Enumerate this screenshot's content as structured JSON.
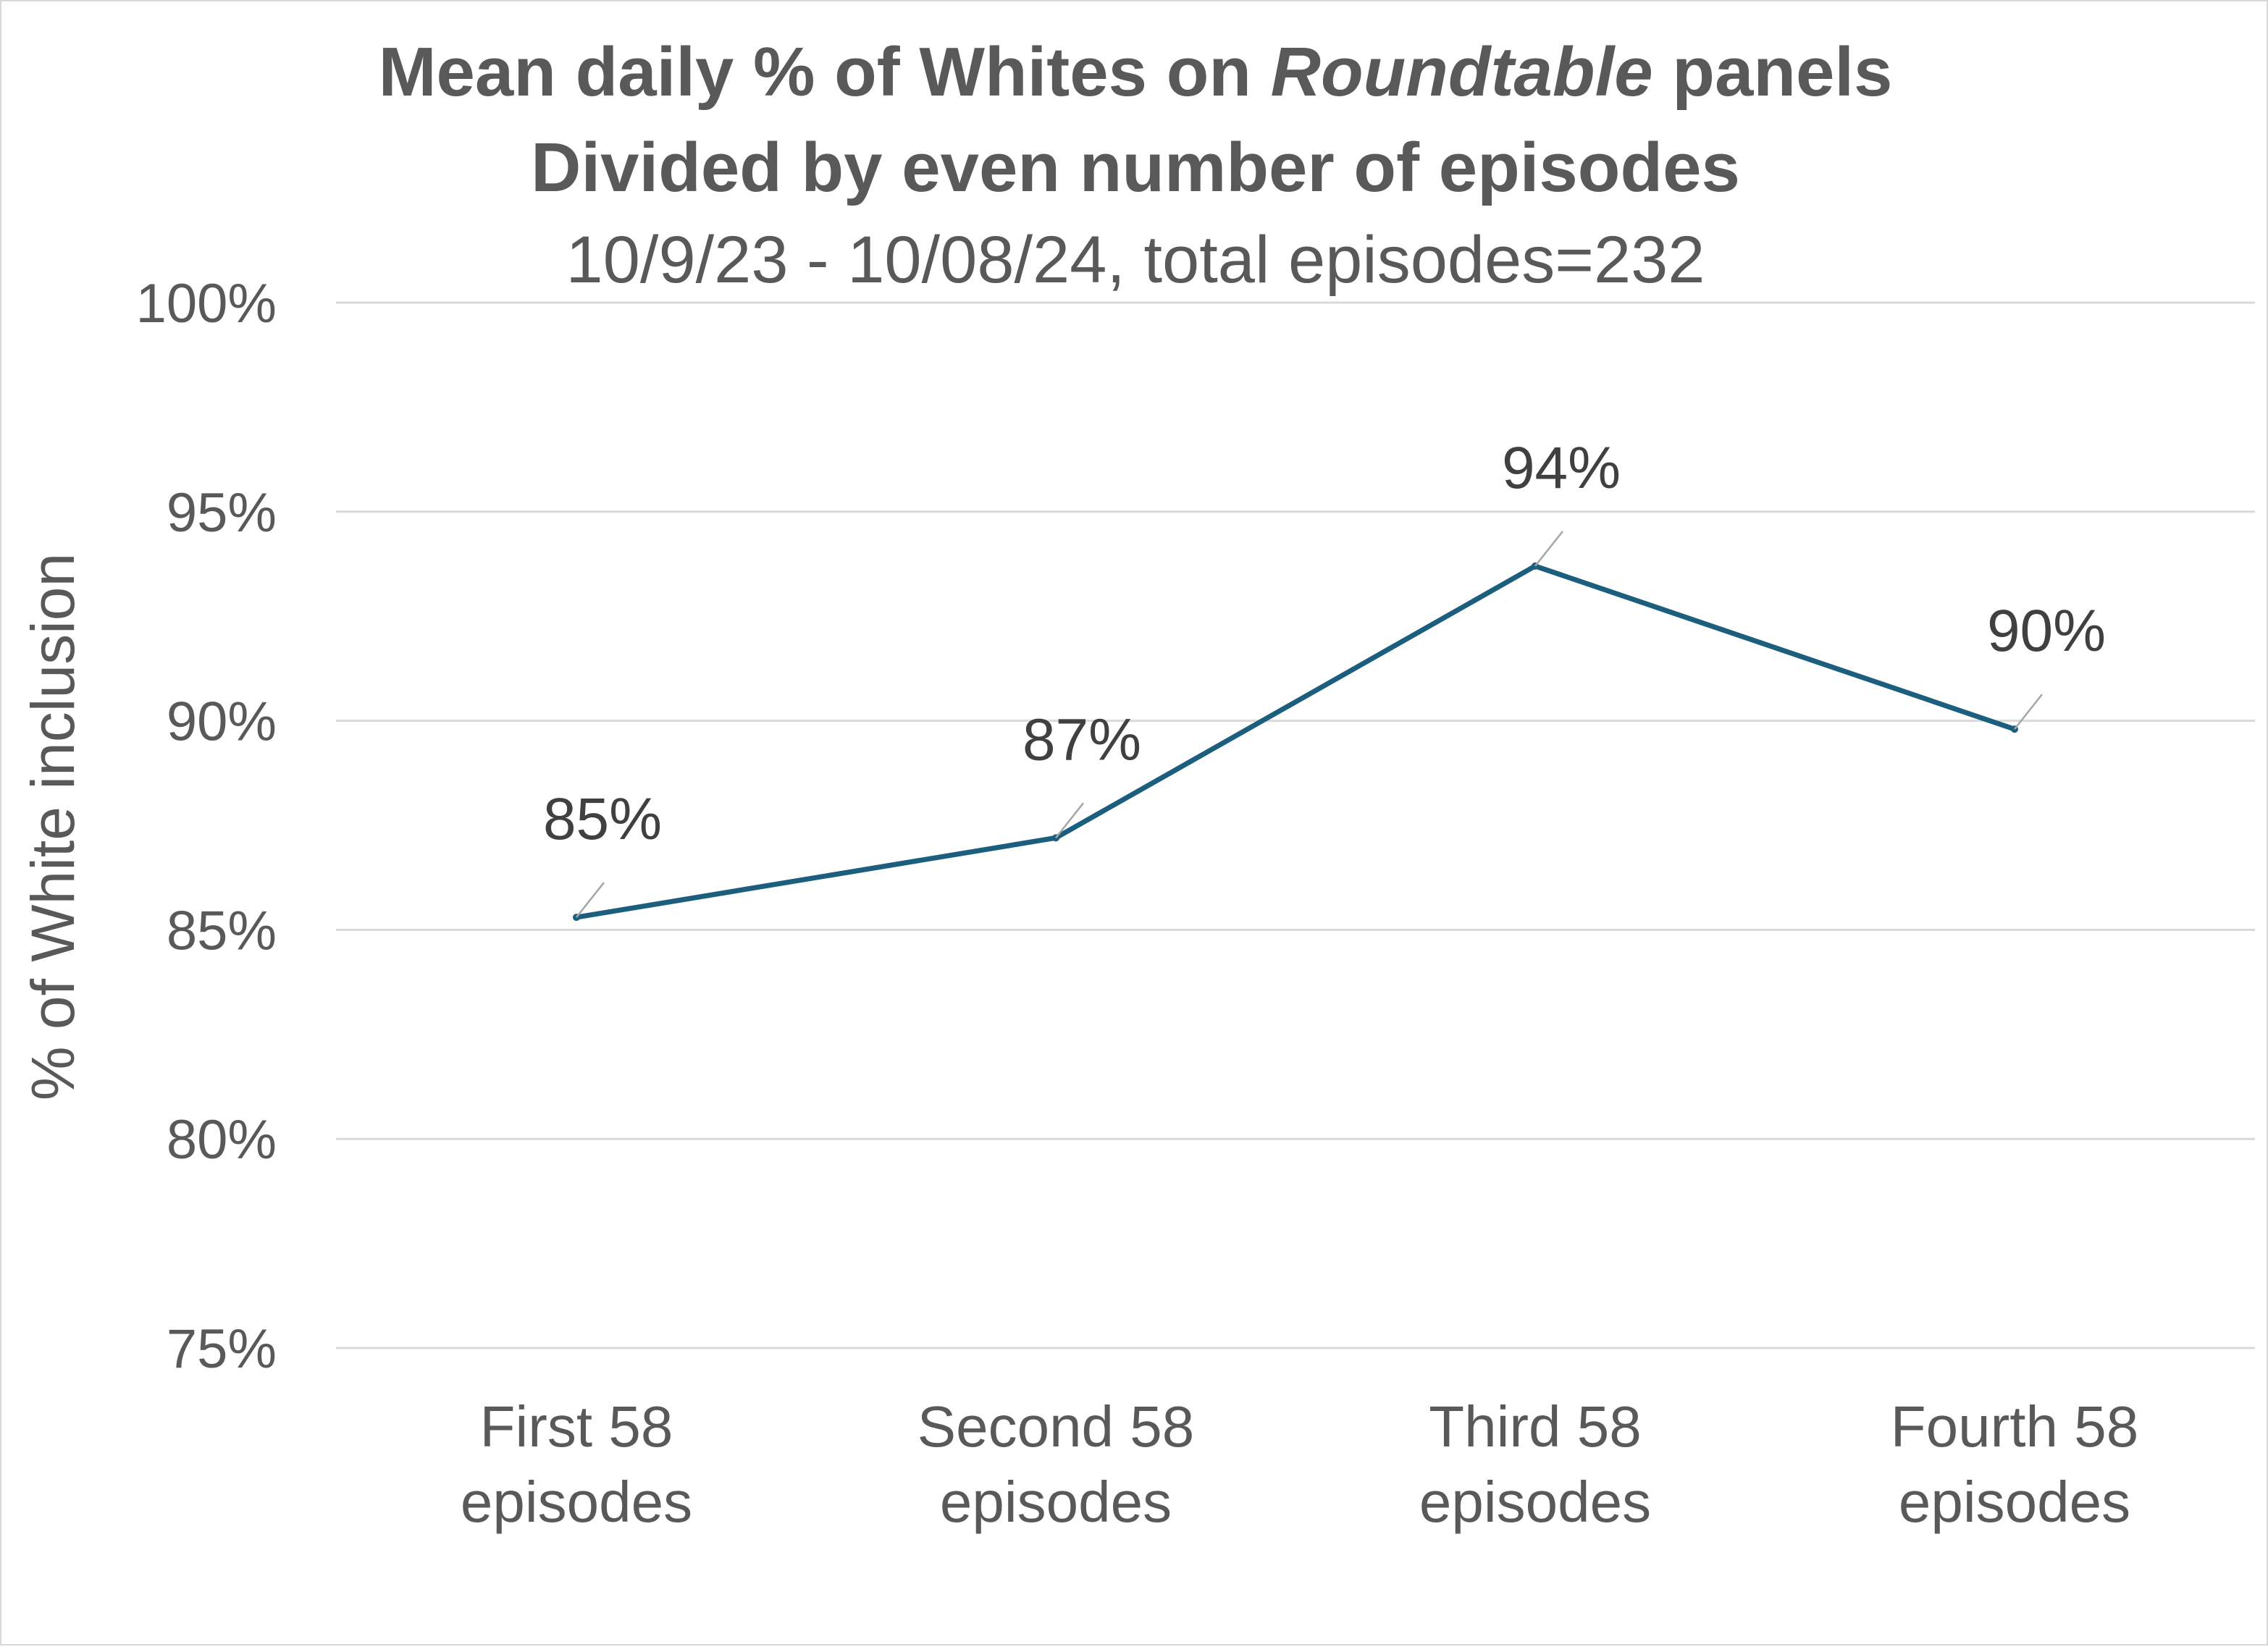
{
  "chart_data": {
    "type": "line",
    "title_line1_pre": "Mean daily % of Whites on ",
    "title_line1_italic": "Roundtable",
    "title_line1_post": " panels",
    "title_line2": "Divided by even number of episodes",
    "subtitle": "10/9/23 - 10/08/24, total episodes=232",
    "ylabel": "% of White inclusion",
    "ylim": [
      75,
      100
    ],
    "yticks": [
      75,
      80,
      85,
      90,
      95,
      100
    ],
    "ytick_labels": [
      "75%",
      "80%",
      "85%",
      "90%",
      "95%",
      "100%"
    ],
    "categories": [
      [
        "First 58",
        "episodes"
      ],
      [
        "Second 58",
        "episodes"
      ],
      [
        "Third 58",
        "episodes"
      ],
      [
        "Fourth 58",
        "episodes"
      ]
    ],
    "values": [
      85.3,
      87.2,
      93.7,
      89.8
    ],
    "data_labels": [
      "85%",
      "87%",
      "94%",
      "90%"
    ],
    "grid": true,
    "line_color": "#1b5e7e",
    "leader_color": "#a6a6a6"
  }
}
